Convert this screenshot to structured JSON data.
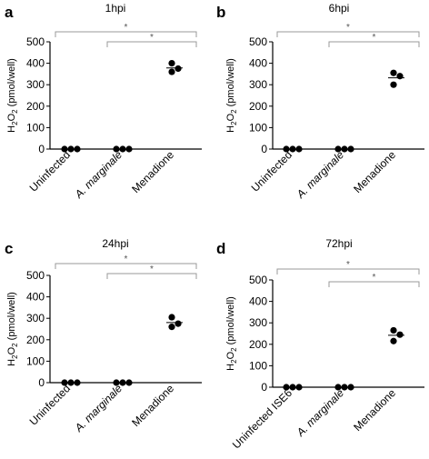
{
  "chart_data": [
    {
      "panel": "a",
      "type": "scatter",
      "title": "1hpi",
      "ylabel": "H2O2 (pmol/well)",
      "ylim": [
        0,
        500
      ],
      "yticks": [
        0,
        100,
        200,
        300,
        400,
        500
      ],
      "categories": [
        "Uninfected",
        "A. marginale",
        "Menadione"
      ],
      "points": [
        [
          0,
          0,
          0
        ],
        [
          0,
          0,
          0
        ],
        [
          400,
          375,
          360
        ]
      ],
      "means": [
        0,
        0,
        378
      ],
      "significance": [
        {
          "from": 0,
          "to": 2,
          "label": "*"
        },
        {
          "from": 1,
          "to": 2,
          "label": "*"
        }
      ]
    },
    {
      "panel": "b",
      "type": "scatter",
      "title": "6hpi",
      "ylabel": "H2O2 (pmol/well)",
      "ylim": [
        0,
        500
      ],
      "yticks": [
        0,
        100,
        200,
        300,
        400,
        500
      ],
      "categories": [
        "Uninfected",
        "A. marginale",
        "Menadione"
      ],
      "points": [
        [
          0,
          0,
          0
        ],
        [
          0,
          0,
          0
        ],
        [
          355,
          340,
          300
        ]
      ],
      "means": [
        0,
        0,
        332
      ],
      "significance": [
        {
          "from": 0,
          "to": 2,
          "label": "*"
        },
        {
          "from": 1,
          "to": 2,
          "label": "*"
        }
      ]
    },
    {
      "panel": "c",
      "type": "scatter",
      "title": "24hpi",
      "ylabel": "H2O2 (pmol/well)",
      "ylim": [
        0,
        500
      ],
      "yticks": [
        0,
        100,
        200,
        300,
        400,
        500
      ],
      "categories": [
        "Uninfected",
        "A. marginale",
        "Menadione"
      ],
      "points": [
        [
          0,
          0,
          0
        ],
        [
          0,
          0,
          0
        ],
        [
          305,
          275,
          260
        ]
      ],
      "means": [
        0,
        0,
        280
      ],
      "significance": [
        {
          "from": 0,
          "to": 2,
          "label": "*"
        },
        {
          "from": 1,
          "to": 2,
          "label": "*"
        }
      ]
    },
    {
      "panel": "d",
      "type": "scatter",
      "title": "72hpi",
      "ylabel": "H2O2 (pmol/well)",
      "ylim": [
        0,
        500
      ],
      "yticks": [
        0,
        100,
        200,
        300,
        400,
        500
      ],
      "categories": [
        "Uninfected ISE6",
        "A. marginale",
        "Menadione"
      ],
      "points": [
        [
          0,
          0,
          0
        ],
        [
          0,
          0,
          0
        ],
        [
          265,
          245,
          215
        ]
      ],
      "means": [
        0,
        0,
        242
      ],
      "significance": [
        {
          "from": 0,
          "to": 2,
          "label": "*"
        },
        {
          "from": 1,
          "to": 2,
          "label": "*"
        }
      ]
    }
  ]
}
